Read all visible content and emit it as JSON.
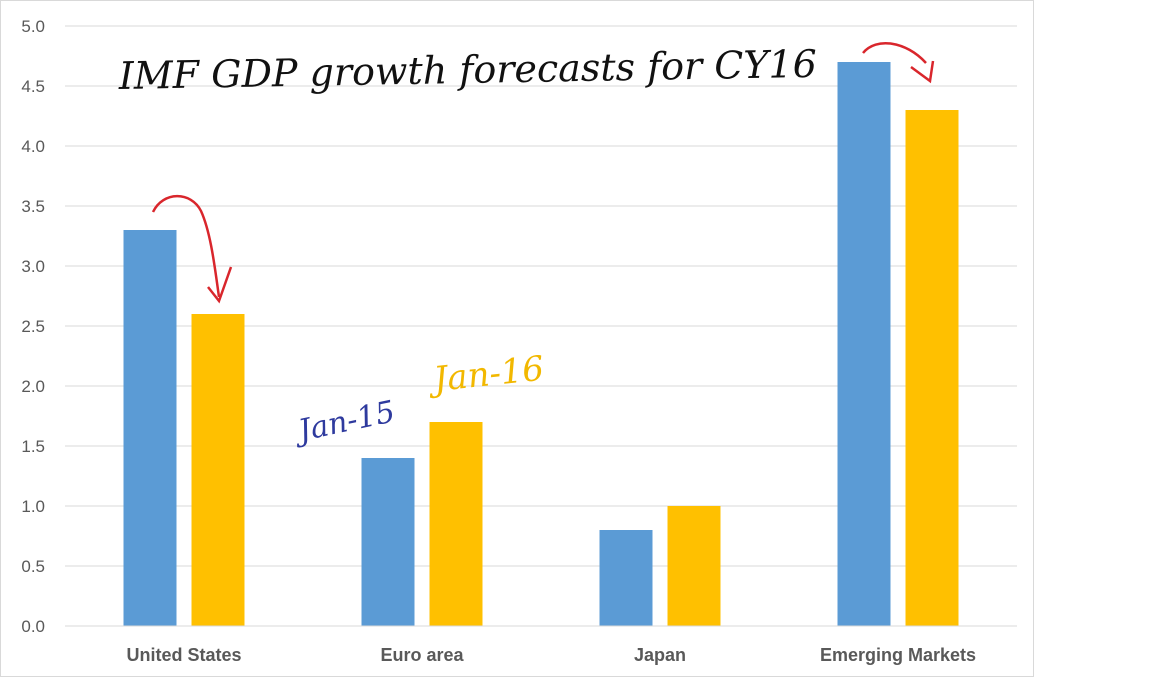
{
  "chart_data": {
    "type": "bar",
    "title": "IMF GDP growth forecasts for CY16",
    "categories": [
      "United States",
      "Euro area",
      "Japan",
      "Emerging Markets"
    ],
    "series": [
      {
        "name": "Jan-15",
        "color": "#5b9bd5",
        "values": [
          3.3,
          1.4,
          0.8,
          4.7
        ]
      },
      {
        "name": "Jan-16",
        "color": "#ffc000",
        "values": [
          2.6,
          1.7,
          1.0,
          4.3
        ]
      }
    ],
    "ylim": [
      0,
      5.0
    ],
    "yticks": [
      "0.0",
      "0.5",
      "1.0",
      "1.5",
      "2.0",
      "2.5",
      "3.0",
      "3.5",
      "4.0",
      "4.5",
      "5.0"
    ],
    "grid": true,
    "annotation_color": "#d9262c",
    "label_colors": {
      "Jan-15": "#2e3a9e",
      "Jan-16": "#f2b800"
    }
  }
}
